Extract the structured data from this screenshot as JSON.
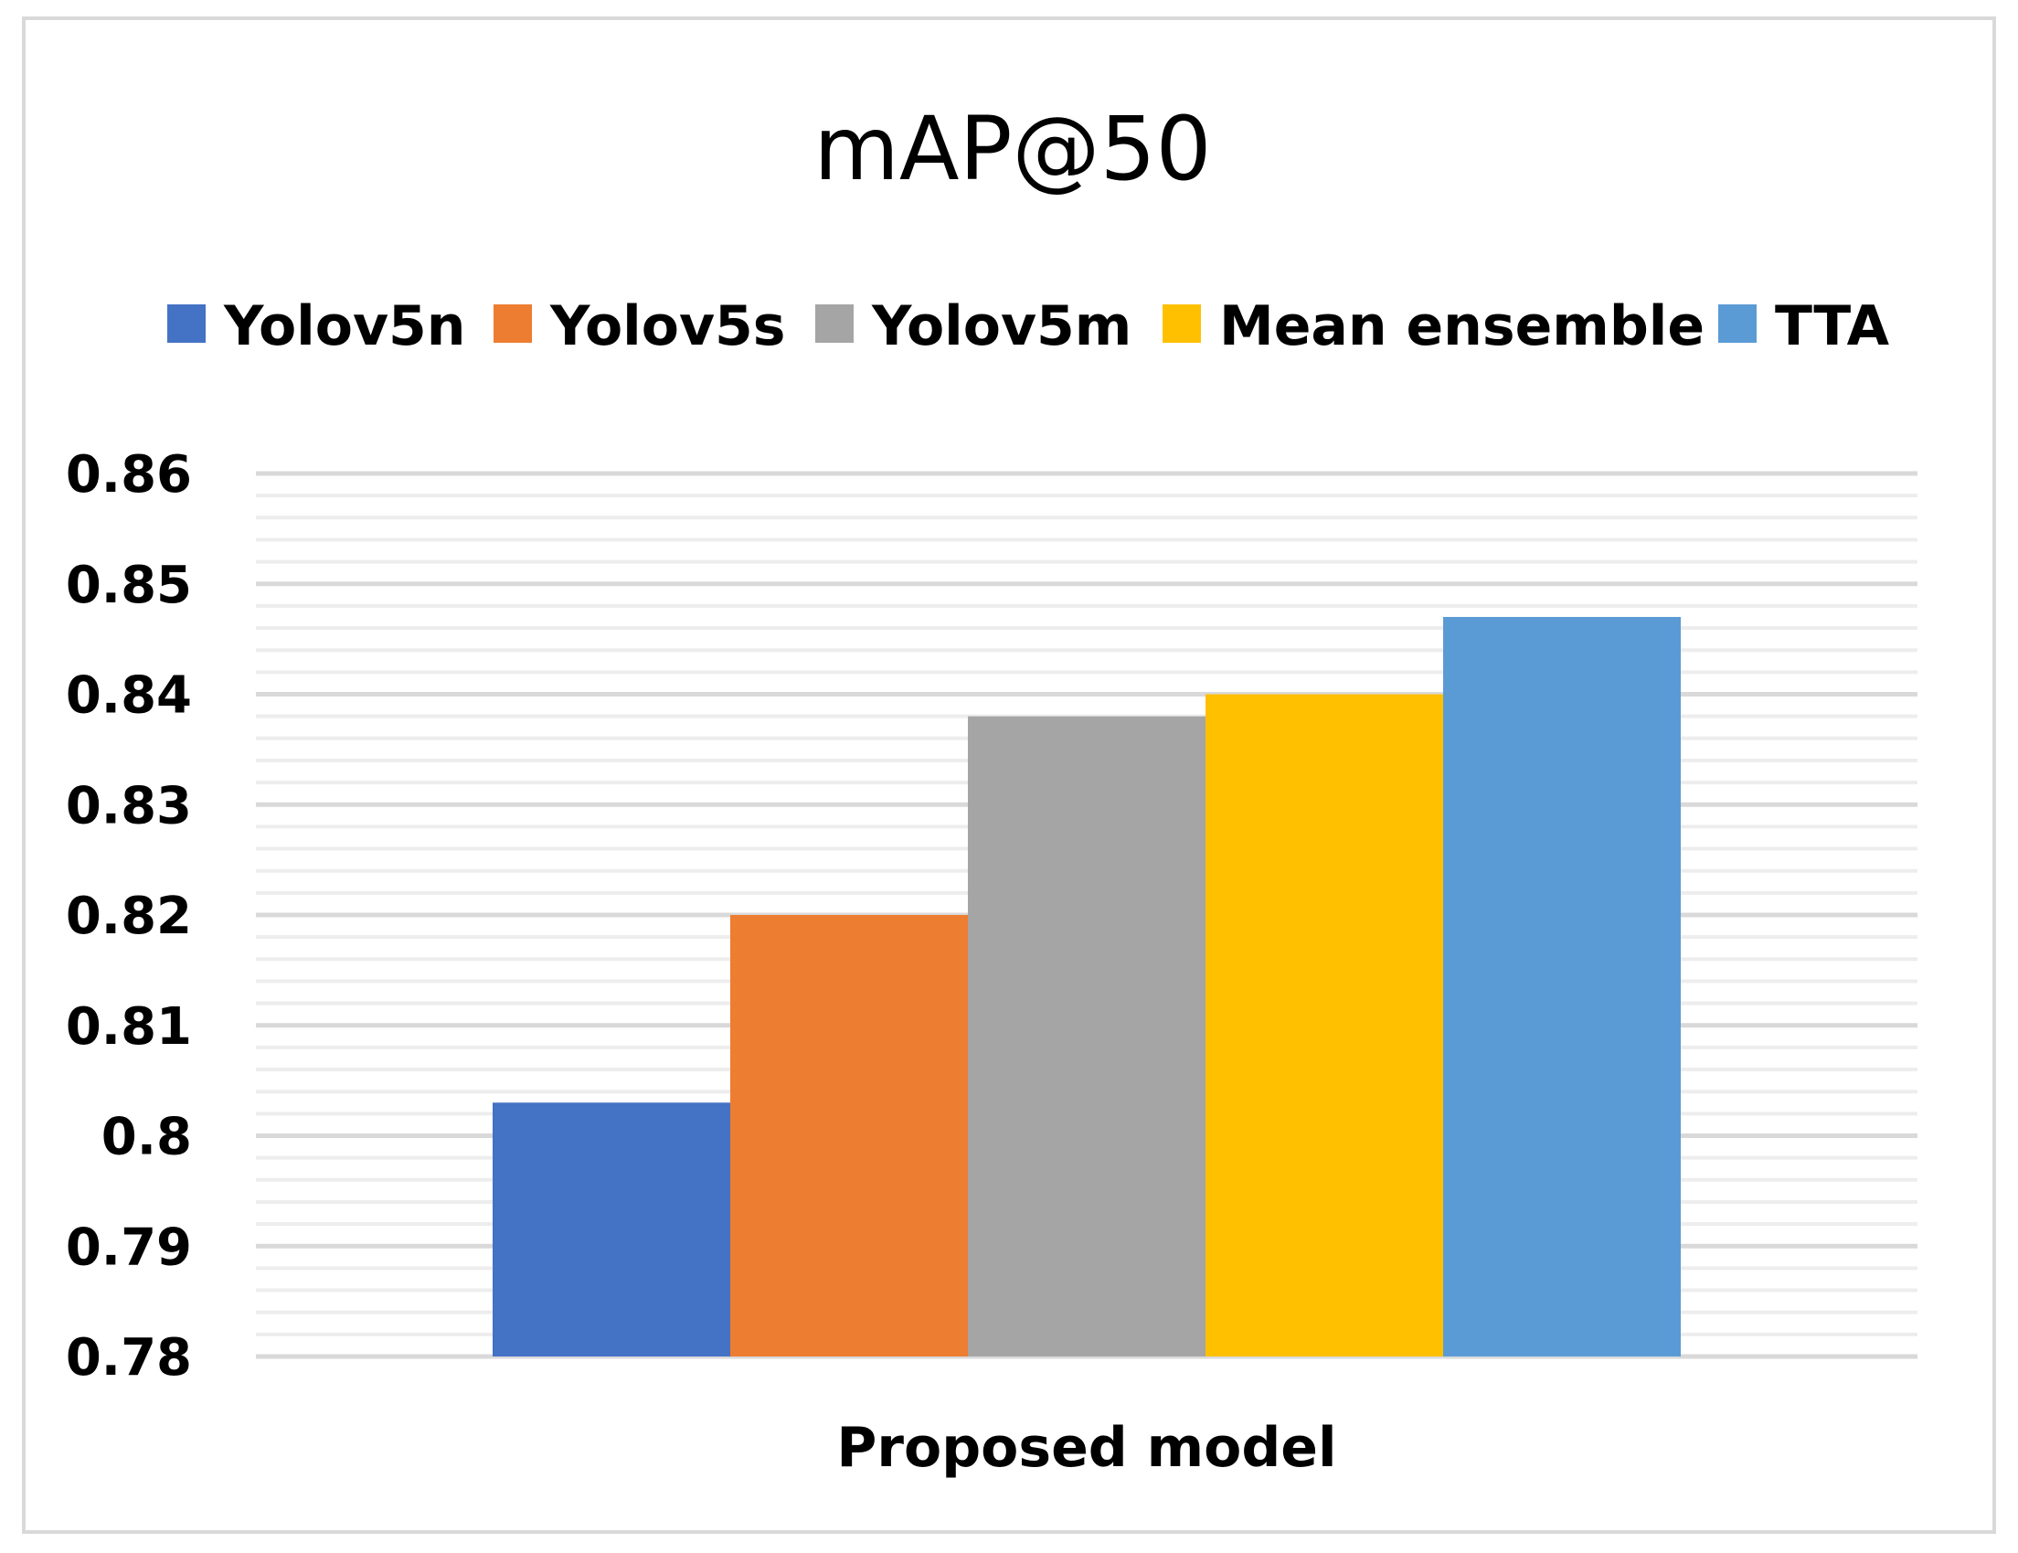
{
  "chart_data": {
    "type": "bar",
    "title": "mAP@50",
    "categories": [
      "Proposed model"
    ],
    "series": [
      {
        "name": "Yolov5n",
        "values": [
          0.803
        ],
        "color": "#4472C4"
      },
      {
        "name": "Yolov5s",
        "values": [
          0.82
        ],
        "color": "#ED7D31"
      },
      {
        "name": "Yolov5m",
        "values": [
          0.838
        ],
        "color": "#A5A5A5"
      },
      {
        "name": "Mean ensemble",
        "values": [
          0.84
        ],
        "color": "#FFC000"
      },
      {
        "name": "TTA",
        "values": [
          0.847
        ],
        "color": "#5B9BD5"
      }
    ],
    "xlabel": "",
    "ylabel": "",
    "ylim": [
      0.78,
      0.86
    ],
    "yticks": [
      "0.78",
      "0.79",
      "0.8",
      "0.81",
      "0.82",
      "0.83",
      "0.84",
      "0.85",
      "0.86"
    ],
    "ytick_values": [
      0.78,
      0.79,
      0.8,
      0.81,
      0.82,
      0.83,
      0.84,
      0.85,
      0.86
    ],
    "grid": true,
    "legend_position": "top"
  }
}
